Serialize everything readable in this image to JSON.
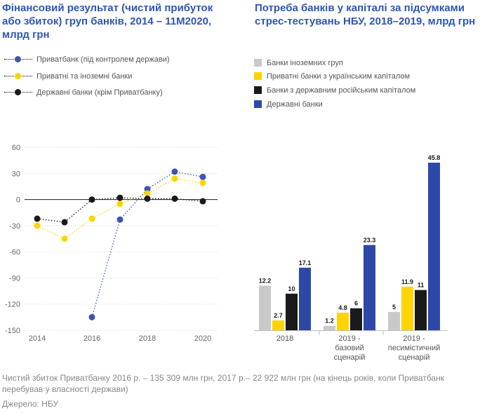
{
  "charts": {
    "left": {
      "title": "Фінансовий результат (чистий прибуток або збиток) груп банків, 2014 – 11М2020, млрд грн"
    },
    "right": {
      "title": "Потреба банків у капіталі за підсумками стрес-тестувань НБУ, 2018–2019, млрд грн"
    }
  },
  "chart_data": [
    {
      "type": "line",
      "title": "Фінансовий результат (чистий прибуток або збиток) груп банків, 2014 – 11М2020, млрд грн",
      "x": [
        2014,
        2015,
        2016,
        2017,
        2018,
        2019,
        2020
      ],
      "x_ticks": [
        "2014",
        "2016",
        "2018",
        "2020"
      ],
      "y_ticks": [
        "60",
        "30",
        "0",
        "-30",
        "-60",
        "-90",
        "-120",
        "-150"
      ],
      "ylim": [
        -150,
        60
      ],
      "xlim": [
        2014,
        2020.5
      ],
      "grid": true,
      "series": [
        {
          "name": "Приватбанк (під контролем держави)",
          "color": "#3b55b0",
          "values": [
            null,
            null,
            -135,
            -23,
            12,
            32,
            26
          ]
        },
        {
          "name": "Приватні та іноземні банки",
          "color": "#ffd400",
          "values": [
            -30,
            -45,
            -22,
            -5,
            7,
            24,
            19
          ]
        },
        {
          "name": "Державні банки (крім Приватбанку)",
          "color": "#1a1a1a",
          "values": [
            -22,
            -26,
            0,
            2,
            1,
            1,
            -2
          ]
        }
      ]
    },
    {
      "type": "bar",
      "title": "Потреба банків у капіталі за підсумками стрес-тестувань НБУ, 2018–2019, млрд грн",
      "categories": [
        [
          "2018"
        ],
        [
          "2019 -",
          "базовий",
          "сценарій"
        ],
        [
          "2019 -",
          "песимістичний",
          "сценарій"
        ]
      ],
      "ylim": [
        0,
        46
      ],
      "series": [
        {
          "name": "Банки іноземних груп",
          "color": "#c9c9c9",
          "values": [
            12.2,
            1.2,
            5
          ],
          "labels": [
            "12.2",
            "1.2",
            "5"
          ]
        },
        {
          "name": "Приватні банки з українським капіталом",
          "color": "#ffd400",
          "values": [
            2.7,
            4.8,
            11.9
          ],
          "labels": [
            "2.7",
            "4.8",
            "11.9"
          ]
        },
        {
          "name": "Банки з державним російським капіталом",
          "color": "#1a1a1a",
          "values": [
            10,
            6,
            11
          ],
          "labels": [
            "10",
            "6",
            "11"
          ]
        },
        {
          "name": "Державні банки",
          "color": "#2e48a8",
          "values": [
            17.1,
            23.3,
            45.8
          ],
          "labels": [
            "17.1",
            "23.3",
            "45.8"
          ]
        }
      ]
    }
  ],
  "notes": {
    "line1": "Чистий збиток Приватбанку 2016 р. – 135 309 млн грн, 2017 р.– 22 922 млн грн (на кінець років, коли Приватбанк",
    "line2": "перебував у власності держави)",
    "source": "Джерело: НБУ"
  }
}
